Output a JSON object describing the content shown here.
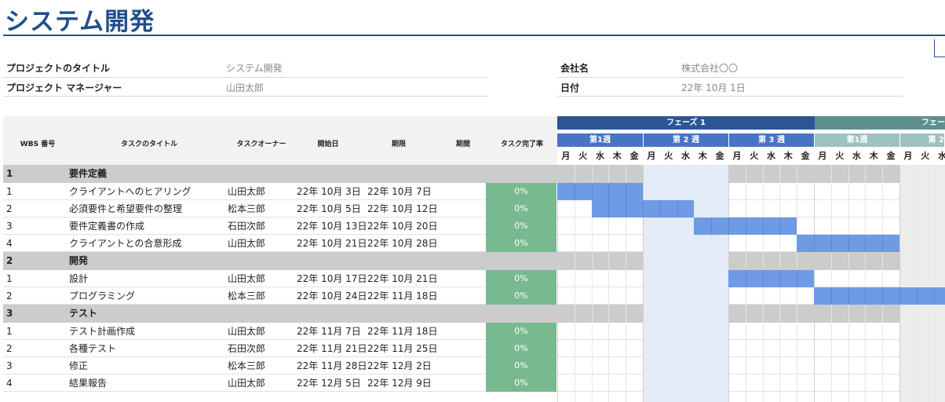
{
  "title": "システム開発",
  "info": {
    "project_title_label": "プロジェクトのタイトル",
    "project_title_value": "システム開発",
    "manager_label": "プロジェクト マネージャー",
    "manager_value": "山田太郎",
    "company_label": "会社名",
    "company_value": "株式会社〇〇",
    "date_label": "日付",
    "date_value": "22年 10月 1日"
  },
  "columns": {
    "wbs": "WBS 番号",
    "task": "タスクのタイトル",
    "owner": "タスクオーナー",
    "start": "開始日",
    "due": "期限",
    "duration": "期間",
    "progress": "タスク完了率"
  },
  "phases": [
    {
      "label": "フェーズ 1",
      "color": "#2c5593"
    },
    {
      "label": "フェー",
      "color": "#5f8f8f"
    }
  ],
  "weeks": [
    {
      "label": "第1週",
      "color": "#4775c4"
    },
    {
      "label": "第 2 週",
      "color": "#4775c4"
    },
    {
      "label": "第 3 週",
      "color": "#4775c4"
    },
    {
      "label": "第1週",
      "color": "#9ec1c1"
    },
    {
      "label": "第 2",
      "color": "#9ec1c1"
    }
  ],
  "days": [
    "月",
    "火",
    "水",
    "木",
    "金",
    "月",
    "火",
    "水",
    "木",
    "金",
    "月",
    "火",
    "水",
    "木",
    "金",
    "月",
    "火",
    "水",
    "木",
    "金",
    "月",
    "火",
    "水"
  ],
  "groups": [
    {
      "num": "1",
      "name": "要件定義",
      "tasks": [
        {
          "num": "1",
          "title": "クライアントへのヒアリング",
          "owner": "山田太郎",
          "start": "22年 10月 3日",
          "due": "22年 10月 7日",
          "progress": "0%"
        },
        {
          "num": "2",
          "title": "必須要件と希望要件の整理",
          "owner": "松本三郎",
          "start": "22年 10月 5日",
          "due": "22年 10月 12日",
          "progress": "0%"
        },
        {
          "num": "3",
          "title": "要件定義書の作成",
          "owner": "石田次郎",
          "start": "22年 10月 13日",
          "due": "22年 10月 20日",
          "progress": "0%"
        },
        {
          "num": "4",
          "title": "クライアントとの合意形成",
          "owner": "山田太郎",
          "start": "22年 10月 21日",
          "due": "22年 10月 28日",
          "progress": "0%"
        }
      ]
    },
    {
      "num": "2",
      "name": "開発",
      "tasks": [
        {
          "num": "1",
          "title": "設計",
          "owner": "山田太郎",
          "start": "22年 10月 17日",
          "due": "22年 10月 21日",
          "progress": "0%"
        },
        {
          "num": "2",
          "title": "プログラミング",
          "owner": "松本三郎",
          "start": "22年 10月 24日",
          "due": "22年 11月 18日",
          "progress": "0%"
        }
      ]
    },
    {
      "num": "3",
      "name": "テスト",
      "tasks": [
        {
          "num": "1",
          "title": "テスト計画作成",
          "owner": "山田太郎",
          "start": "22年 11月 7日",
          "due": "22年 11月 18日",
          "progress": "0%"
        },
        {
          "num": "2",
          "title": "各種テスト",
          "owner": "石田次郎",
          "start": "22年 11月 21日",
          "due": "22年 11月 25日",
          "progress": "0%"
        },
        {
          "num": "3",
          "title": "修正",
          "owner": "松本三郎",
          "start": "22年 11月 28日",
          "due": "22年 12月 2日",
          "progress": "0%"
        },
        {
          "num": "4",
          "title": "結果報告",
          "owner": "山田太郎",
          "start": "22年 12月 5日",
          "due": "22年 12月 9日",
          "progress": "0%"
        }
      ]
    }
  ],
  "gantt": {
    "bar_color": "#6f9ae4",
    "bars": [
      {
        "group": 0,
        "task": 0,
        "from": 0,
        "to": 5
      },
      {
        "group": 0,
        "task": 1,
        "from": 2,
        "to": 8
      },
      {
        "group": 0,
        "task": 2,
        "from": 8,
        "to": 14
      },
      {
        "group": 0,
        "task": 3,
        "from": 14,
        "to": 20
      },
      {
        "group": 1,
        "task": 0,
        "from": 10,
        "to": 15
      },
      {
        "group": 1,
        "task": 1,
        "from": 15,
        "to": 23
      }
    ]
  }
}
